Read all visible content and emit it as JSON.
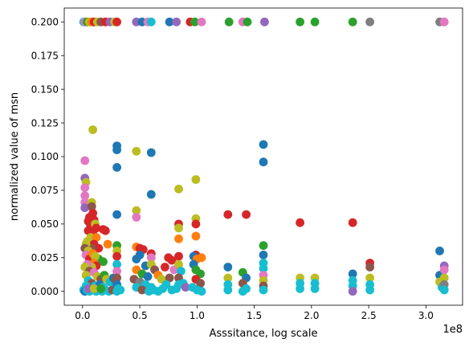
{
  "chart_data": {
    "type": "scatter",
    "title": "",
    "xlabel": "Asssitance, log scale",
    "ylabel": "normalized value of msn",
    "x_offset_label": "1e8",
    "xlim": [
      -0.16,
      3.32
    ],
    "ylim": [
      -0.0103,
      0.2103
    ],
    "x_ticks": [
      0.0,
      0.5,
      1.0,
      1.5,
      2.0,
      2.5,
      3.0
    ],
    "x_tick_labels": [
      "0.0",
      "0.5",
      "1.0",
      "1.5",
      "2.0",
      "2.5",
      "3.0"
    ],
    "y_ticks": [
      0.0,
      0.025,
      0.05,
      0.075,
      0.1,
      0.125,
      0.15,
      0.175,
      0.2
    ],
    "y_tick_labels": [
      "0.000",
      "0.025",
      "0.050",
      "0.075",
      "0.100",
      "0.125",
      "0.150",
      "0.175",
      "0.200"
    ],
    "grid": false,
    "palette": [
      "#1f77b4",
      "#ff7f0e",
      "#2ca02c",
      "#d62728",
      "#9467bd",
      "#8c564b",
      "#e377c2",
      "#7f7f7f",
      "#bcbd22",
      "#17becf"
    ],
    "points": [
      {
        "x": 0.01,
        "y": 0.2,
        "c": 9
      },
      {
        "x": 0.02,
        "y": 0.2,
        "c": 6
      },
      {
        "x": 0.04,
        "y": 0.2,
        "c": 2
      },
      {
        "x": 0.06,
        "y": 0.2,
        "c": 8
      },
      {
        "x": 0.08,
        "y": 0.2,
        "c": 1
      },
      {
        "x": 0.1,
        "y": 0.2,
        "c": 3
      },
      {
        "x": 0.13,
        "y": 0.2,
        "c": 8
      },
      {
        "x": 0.16,
        "y": 0.2,
        "c": 5
      },
      {
        "x": 0.2,
        "y": 0.2,
        "c": 3
      },
      {
        "x": 0.24,
        "y": 0.2,
        "c": 4
      },
      {
        "x": 0.28,
        "y": 0.2,
        "c": 8
      },
      {
        "x": 0.3,
        "y": 0.2,
        "c": 3
      },
      {
        "x": 0.47,
        "y": 0.2,
        "c": 4
      },
      {
        "x": 0.52,
        "y": 0.2,
        "c": 0
      },
      {
        "x": 0.57,
        "y": 0.2,
        "c": 6
      },
      {
        "x": 0.6,
        "y": 0.2,
        "c": 9
      },
      {
        "x": 0.76,
        "y": 0.2,
        "c": 0
      },
      {
        "x": 0.82,
        "y": 0.2,
        "c": 4
      },
      {
        "x": 0.94,
        "y": 0.2,
        "c": 3
      },
      {
        "x": 0.98,
        "y": 0.2,
        "c": 2
      },
      {
        "x": 1.04,
        "y": 0.2,
        "c": 6
      },
      {
        "x": 1.28,
        "y": 0.2,
        "c": 2
      },
      {
        "x": 1.4,
        "y": 0.2,
        "c": 6
      },
      {
        "x": 1.44,
        "y": 0.2,
        "c": 2
      },
      {
        "x": 1.59,
        "y": 0.2,
        "c": 4
      },
      {
        "x": 1.9,
        "y": 0.2,
        "c": 2
      },
      {
        "x": 2.03,
        "y": 0.2,
        "c": 2
      },
      {
        "x": 2.36,
        "y": 0.2,
        "c": 2
      },
      {
        "x": 2.51,
        "y": 0.2,
        "c": 7
      },
      {
        "x": 3.12,
        "y": 0.2,
        "c": 7
      },
      {
        "x": 3.16,
        "y": 0.2,
        "c": 6
      },
      {
        "x": 0.09,
        "y": 0.12,
        "c": 8
      },
      {
        "x": 0.3,
        "y": 0.108,
        "c": 0
      },
      {
        "x": 0.3,
        "y": 0.105,
        "c": 0
      },
      {
        "x": 0.3,
        "y": 0.092,
        "c": 0
      },
      {
        "x": 0.47,
        "y": 0.104,
        "c": 8
      },
      {
        "x": 0.6,
        "y": 0.103,
        "c": 0
      },
      {
        "x": 0.6,
        "y": 0.072,
        "c": 0
      },
      {
        "x": 1.58,
        "y": 0.109,
        "c": 0
      },
      {
        "x": 1.58,
        "y": 0.096,
        "c": 0
      },
      {
        "x": 0.02,
        "y": 0.097,
        "c": 6
      },
      {
        "x": 0.02,
        "y": 0.084,
        "c": 4
      },
      {
        "x": 0.03,
        "y": 0.081,
        "c": 8
      },
      {
        "x": 0.02,
        "y": 0.077,
        "c": 6
      },
      {
        "x": 0.02,
        "y": 0.071,
        "c": 6
      },
      {
        "x": 0.02,
        "y": 0.066,
        "c": 6
      },
      {
        "x": 0.02,
        "y": 0.062,
        "c": 4
      },
      {
        "x": 0.08,
        "y": 0.066,
        "c": 8
      },
      {
        "x": 0.08,
        "y": 0.063,
        "c": 5
      },
      {
        "x": 0.3,
        "y": 0.057,
        "c": 0
      },
      {
        "x": 0.47,
        "y": 0.06,
        "c": 8
      },
      {
        "x": 0.47,
        "y": 0.055,
        "c": 6
      },
      {
        "x": 0.84,
        "y": 0.076,
        "c": 8
      },
      {
        "x": 0.99,
        "y": 0.083,
        "c": 8
      },
      {
        "x": 0.99,
        "y": 0.054,
        "c": 8
      },
      {
        "x": 0.84,
        "y": 0.05,
        "c": 3
      },
      {
        "x": 0.84,
        "y": 0.047,
        "c": 8
      },
      {
        "x": 0.99,
        "y": 0.05,
        "c": 3
      },
      {
        "x": 1.27,
        "y": 0.057,
        "c": 3
      },
      {
        "x": 1.43,
        "y": 0.057,
        "c": 3
      },
      {
        "x": 1.9,
        "y": 0.051,
        "c": 3
      },
      {
        "x": 2.36,
        "y": 0.051,
        "c": 3
      },
      {
        "x": 0.06,
        "y": 0.055,
        "c": 3
      },
      {
        "x": 0.05,
        "y": 0.052,
        "c": 3
      },
      {
        "x": 0.07,
        "y": 0.048,
        "c": 3
      },
      {
        "x": 0.05,
        "y": 0.045,
        "c": 3
      },
      {
        "x": 0.09,
        "y": 0.058,
        "c": 3
      },
      {
        "x": 0.1,
        "y": 0.053,
        "c": 3
      },
      {
        "x": 0.11,
        "y": 0.05,
        "c": 8
      },
      {
        "x": 0.12,
        "y": 0.047,
        "c": 3
      },
      {
        "x": 0.09,
        "y": 0.043,
        "c": 3
      },
      {
        "x": 0.07,
        "y": 0.04,
        "c": 8
      },
      {
        "x": 0.04,
        "y": 0.037,
        "c": 8
      },
      {
        "x": 0.18,
        "y": 0.046,
        "c": 3
      },
      {
        "x": 0.2,
        "y": 0.045,
        "c": 3
      },
      {
        "x": 0.22,
        "y": 0.035,
        "c": 1
      },
      {
        "x": 0.12,
        "y": 0.04,
        "c": 1
      },
      {
        "x": 0.14,
        "y": 0.032,
        "c": 3
      },
      {
        "x": 0.1,
        "y": 0.035,
        "c": 3
      },
      {
        "x": 0.08,
        "y": 0.032,
        "c": 5
      },
      {
        "x": 0.14,
        "y": 0.024,
        "c": 2
      },
      {
        "x": 0.18,
        "y": 0.022,
        "c": 2
      },
      {
        "x": 0.03,
        "y": 0.035,
        "c": 8
      },
      {
        "x": 0.02,
        "y": 0.032,
        "c": 5
      },
      {
        "x": 0.05,
        "y": 0.03,
        "c": 8
      },
      {
        "x": 0.03,
        "y": 0.027,
        "c": 6
      },
      {
        "x": 0.07,
        "y": 0.026,
        "c": 1
      },
      {
        "x": 0.06,
        "y": 0.024,
        "c": 3
      },
      {
        "x": 0.09,
        "y": 0.028,
        "c": 1
      },
      {
        "x": 0.11,
        "y": 0.026,
        "c": 8
      },
      {
        "x": 0.1,
        "y": 0.021,
        "c": 1
      },
      {
        "x": 0.12,
        "y": 0.019,
        "c": 3
      },
      {
        "x": 0.08,
        "y": 0.018,
        "c": 8
      },
      {
        "x": 0.04,
        "y": 0.02,
        "c": 6
      },
      {
        "x": 0.02,
        "y": 0.018,
        "c": 8
      },
      {
        "x": 0.06,
        "y": 0.015,
        "c": 5
      },
      {
        "x": 0.03,
        "y": 0.012,
        "c": 8
      },
      {
        "x": 0.1,
        "y": 0.014,
        "c": 6
      },
      {
        "x": 0.13,
        "y": 0.011,
        "c": 8
      },
      {
        "x": 0.16,
        "y": 0.009,
        "c": 5
      },
      {
        "x": 0.19,
        "y": 0.012,
        "c": 2
      },
      {
        "x": 0.21,
        "y": 0.009,
        "c": 8
      },
      {
        "x": 0.24,
        "y": 0.007,
        "c": 9
      },
      {
        "x": 0.27,
        "y": 0.01,
        "c": 0
      },
      {
        "x": 0.29,
        "y": 0.008,
        "c": 5
      },
      {
        "x": 0.05,
        "y": 0.008,
        "c": 9
      },
      {
        "x": 0.08,
        "y": 0.006,
        "c": 5
      },
      {
        "x": 0.11,
        "y": 0.004,
        "c": 9
      },
      {
        "x": 0.03,
        "y": 0.004,
        "c": 9
      },
      {
        "x": 0.15,
        "y": 0.005,
        "c": 0
      },
      {
        "x": 0.18,
        "y": 0.003,
        "c": 9
      },
      {
        "x": 0.01,
        "y": 0.001,
        "c": 9
      },
      {
        "x": 0.02,
        "y": 0.0,
        "c": 0
      },
      {
        "x": 0.04,
        "y": 0.001,
        "c": 9
      },
      {
        "x": 0.06,
        "y": 0.0,
        "c": 9
      },
      {
        "x": 0.09,
        "y": 0.001,
        "c": 9
      },
      {
        "x": 0.12,
        "y": 0.0,
        "c": 9
      },
      {
        "x": 0.14,
        "y": 0.001,
        "c": 9
      },
      {
        "x": 0.17,
        "y": 0.0,
        "c": 9
      },
      {
        "x": 0.2,
        "y": 0.001,
        "c": 9
      },
      {
        "x": 0.23,
        "y": 0.0,
        "c": 9
      },
      {
        "x": 0.26,
        "y": 0.001,
        "c": 5
      },
      {
        "x": 0.3,
        "y": 0.0,
        "c": 9
      },
      {
        "x": 0.33,
        "y": 0.001,
        "c": 9
      },
      {
        "x": 0.05,
        "y": 0.002,
        "c": 4
      },
      {
        "x": 0.1,
        "y": 0.002,
        "c": 8
      },
      {
        "x": 0.16,
        "y": 0.002,
        "c": 2
      },
      {
        "x": 0.3,
        "y": 0.034,
        "c": 2
      },
      {
        "x": 0.3,
        "y": 0.03,
        "c": 8
      },
      {
        "x": 0.3,
        "y": 0.026,
        "c": 3
      },
      {
        "x": 0.3,
        "y": 0.02,
        "c": 9
      },
      {
        "x": 0.3,
        "y": 0.015,
        "c": 6
      },
      {
        "x": 0.3,
        "y": 0.01,
        "c": 5
      },
      {
        "x": 0.3,
        "y": 0.005,
        "c": 0
      },
      {
        "x": 0.31,
        "y": 0.002,
        "c": 9
      },
      {
        "x": 0.47,
        "y": 0.033,
        "c": 1
      },
      {
        "x": 0.5,
        "y": 0.032,
        "c": 3
      },
      {
        "x": 0.53,
        "y": 0.031,
        "c": 3
      },
      {
        "x": 0.5,
        "y": 0.027,
        "c": 0
      },
      {
        "x": 0.47,
        "y": 0.024,
        "c": 0
      },
      {
        "x": 0.55,
        "y": 0.019,
        "c": 0
      },
      {
        "x": 0.47,
        "y": 0.016,
        "c": 1
      },
      {
        "x": 0.52,
        "y": 0.013,
        "c": 2
      },
      {
        "x": 0.57,
        "y": 0.011,
        "c": 0
      },
      {
        "x": 0.45,
        "y": 0.009,
        "c": 5
      },
      {
        "x": 0.5,
        "y": 0.007,
        "c": 7
      },
      {
        "x": 0.55,
        "y": 0.005,
        "c": 9
      },
      {
        "x": 0.6,
        "y": 0.003,
        "c": 9
      },
      {
        "x": 0.47,
        "y": 0.003,
        "c": 9
      },
      {
        "x": 0.52,
        "y": 0.001,
        "c": 5
      },
      {
        "x": 0.58,
        "y": 0.0,
        "c": 9
      },
      {
        "x": 0.62,
        "y": 0.001,
        "c": 9
      },
      {
        "x": 0.66,
        "y": 0.0,
        "c": 9
      },
      {
        "x": 0.6,
        "y": 0.028,
        "c": 3
      },
      {
        "x": 0.6,
        "y": 0.025,
        "c": 6
      },
      {
        "x": 0.6,
        "y": 0.02,
        "c": 8
      },
      {
        "x": 0.63,
        "y": 0.016,
        "c": 5
      },
      {
        "x": 0.66,
        "y": 0.012,
        "c": 1
      },
      {
        "x": 0.69,
        "y": 0.009,
        "c": 8
      },
      {
        "x": 0.72,
        "y": 0.018,
        "c": 3
      },
      {
        "x": 0.75,
        "y": 0.025,
        "c": 3
      },
      {
        "x": 0.78,
        "y": 0.023,
        "c": 3
      },
      {
        "x": 0.8,
        "y": 0.016,
        "c": 6
      },
      {
        "x": 0.76,
        "y": 0.01,
        "c": 5
      },
      {
        "x": 0.73,
        "y": 0.005,
        "c": 9
      },
      {
        "x": 0.7,
        "y": 0.002,
        "c": 9
      },
      {
        "x": 0.78,
        "y": 0.001,
        "c": 9
      },
      {
        "x": 0.82,
        "y": 0.002,
        "c": 9
      },
      {
        "x": 0.84,
        "y": 0.039,
        "c": 1
      },
      {
        "x": 0.84,
        "y": 0.026,
        "c": 3
      },
      {
        "x": 0.84,
        "y": 0.02,
        "c": 8
      },
      {
        "x": 0.86,
        "y": 0.015,
        "c": 9
      },
      {
        "x": 0.84,
        "y": 0.01,
        "c": 5
      },
      {
        "x": 0.84,
        "y": 0.005,
        "c": 9
      },
      {
        "x": 0.88,
        "y": 0.006,
        "c": 9
      },
      {
        "x": 0.9,
        "y": 0.003,
        "c": 4
      },
      {
        "x": 0.99,
        "y": 0.041,
        "c": 1
      },
      {
        "x": 0.99,
        "y": 0.027,
        "c": 3
      },
      {
        "x": 0.97,
        "y": 0.026,
        "c": 0
      },
      {
        "x": 1.0,
        "y": 0.024,
        "c": 1
      },
      {
        "x": 0.97,
        "y": 0.02,
        "c": 0
      },
      {
        "x": 0.99,
        "y": 0.016,
        "c": 2
      },
      {
        "x": 1.03,
        "y": 0.013,
        "c": 2
      },
      {
        "x": 0.99,
        "y": 0.009,
        "c": 3
      },
      {
        "x": 1.03,
        "y": 0.006,
        "c": 5
      },
      {
        "x": 0.96,
        "y": 0.003,
        "c": 9
      },
      {
        "x": 1.0,
        "y": 0.001,
        "c": 9
      },
      {
        "x": 1.04,
        "y": 0.0,
        "c": 9
      },
      {
        "x": 1.04,
        "y": 0.025,
        "c": 1
      },
      {
        "x": 1.27,
        "y": 0.018,
        "c": 0
      },
      {
        "x": 1.27,
        "y": 0.01,
        "c": 8
      },
      {
        "x": 1.27,
        "y": 0.005,
        "c": 9
      },
      {
        "x": 1.27,
        "y": 0.001,
        "c": 9
      },
      {
        "x": 1.4,
        "y": 0.014,
        "c": 2
      },
      {
        "x": 1.43,
        "y": 0.01,
        "c": 0
      },
      {
        "x": 1.4,
        "y": 0.006,
        "c": 5
      },
      {
        "x": 1.43,
        "y": 0.002,
        "c": 9
      },
      {
        "x": 1.4,
        "y": 0.0,
        "c": 9
      },
      {
        "x": 1.58,
        "y": 0.034,
        "c": 2
      },
      {
        "x": 1.58,
        "y": 0.027,
        "c": 0
      },
      {
        "x": 1.58,
        "y": 0.021,
        "c": 9
      },
      {
        "x": 1.58,
        "y": 0.017,
        "c": 9
      },
      {
        "x": 1.58,
        "y": 0.012,
        "c": 6
      },
      {
        "x": 1.58,
        "y": 0.008,
        "c": 8
      },
      {
        "x": 1.58,
        "y": 0.004,
        "c": 5
      },
      {
        "x": 1.58,
        "y": 0.001,
        "c": 9
      },
      {
        "x": 1.9,
        "y": 0.01,
        "c": 8
      },
      {
        "x": 1.9,
        "y": 0.006,
        "c": 9
      },
      {
        "x": 1.9,
        "y": 0.002,
        "c": 9
      },
      {
        "x": 2.03,
        "y": 0.01,
        "c": 8
      },
      {
        "x": 2.03,
        "y": 0.006,
        "c": 9
      },
      {
        "x": 2.03,
        "y": 0.002,
        "c": 9
      },
      {
        "x": 2.36,
        "y": 0.013,
        "c": 0
      },
      {
        "x": 2.36,
        "y": 0.008,
        "c": 9
      },
      {
        "x": 2.36,
        "y": 0.004,
        "c": 9
      },
      {
        "x": 2.36,
        "y": 0.0,
        "c": 4
      },
      {
        "x": 2.51,
        "y": 0.021,
        "c": 3
      },
      {
        "x": 2.51,
        "y": 0.018,
        "c": 5
      },
      {
        "x": 2.51,
        "y": 0.01,
        "c": 8
      },
      {
        "x": 2.51,
        "y": 0.005,
        "c": 9
      },
      {
        "x": 2.51,
        "y": 0.001,
        "c": 9
      },
      {
        "x": 3.12,
        "y": 0.03,
        "c": 0
      },
      {
        "x": 3.12,
        "y": 0.012,
        "c": 0
      },
      {
        "x": 3.12,
        "y": 0.007,
        "c": 8
      },
      {
        "x": 3.14,
        "y": 0.003,
        "c": 9
      },
      {
        "x": 3.16,
        "y": 0.019,
        "c": 4
      },
      {
        "x": 3.16,
        "y": 0.016,
        "c": 6
      },
      {
        "x": 3.16,
        "y": 0.01,
        "c": 8
      },
      {
        "x": 3.16,
        "y": 0.005,
        "c": 7
      },
      {
        "x": 3.16,
        "y": 0.001,
        "c": 9
      }
    ]
  }
}
